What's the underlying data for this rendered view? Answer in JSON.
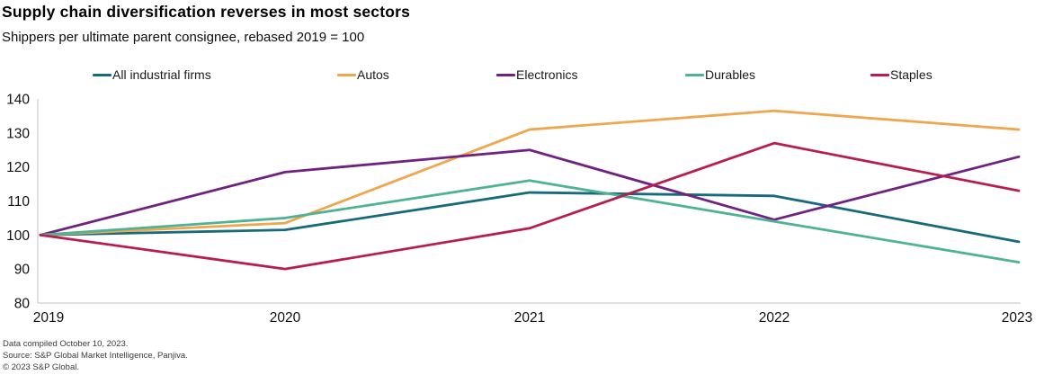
{
  "title": "Supply chain diversification reverses in most sectors",
  "subtitle": "Shippers per ultimate parent consignee, rebased 2019 = 100",
  "chart_data": {
    "type": "line",
    "x": [
      2019,
      2020,
      2021,
      2022,
      2023
    ],
    "series": [
      {
        "name": "All industrial firms",
        "color": "#176a7c",
        "values": [
          100,
          101.5,
          112.5,
          111.5,
          98
        ]
      },
      {
        "name": "Autos",
        "color": "#efa64f",
        "values": [
          100,
          103.5,
          131,
          136.5,
          131
        ]
      },
      {
        "name": "Electronics",
        "color": "#702283",
        "values": [
          100,
          118.5,
          125,
          104.5,
          123
        ]
      },
      {
        "name": "Durables",
        "color": "#50b294",
        "values": [
          100,
          105,
          116,
          104,
          92
        ]
      },
      {
        "name": "Staples",
        "color": "#b71e4f",
        "values": [
          100,
          90,
          102,
          127,
          113
        ]
      }
    ],
    "ylim": [
      80,
      140
    ],
    "yticks": [
      80,
      90,
      100,
      110,
      120,
      130,
      140
    ],
    "xticks": [
      "2019",
      "2020",
      "2021",
      "2022",
      "2023"
    ],
    "grid": false,
    "legend_position": "top",
    "axis_color": "#c2c2c2",
    "tick_label_color": "#111111"
  },
  "footer": {
    "compiled": "Data compiled October 10, 2023.",
    "source": "Source: S&P Global Market Intelligence, Panjiva.",
    "copyright": "© 2023 S&P Global."
  }
}
